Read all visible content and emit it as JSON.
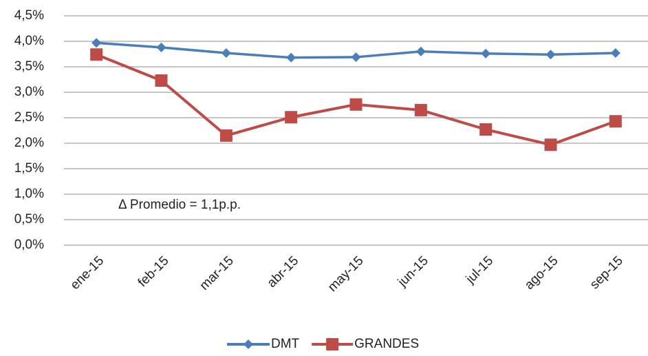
{
  "chart_data": {
    "type": "line",
    "annotation": "Δ Promedio = 1,1p.p.",
    "categories": [
      "ene-15",
      "feb-15",
      "mar-15",
      "abr-15",
      "may-15",
      "jun-15",
      "jul-15",
      "ago-15",
      "sep-15"
    ],
    "series": [
      {
        "name": "DMT",
        "color": "#4a7ebb",
        "marker": "diamond",
        "values": [
          3.97,
          3.88,
          3.77,
          3.68,
          3.69,
          3.8,
          3.76,
          3.74,
          3.77
        ]
      },
      {
        "name": "GRANDES",
        "color": "#be4b48",
        "marker": "square",
        "values": [
          3.74,
          3.23,
          2.15,
          2.51,
          2.76,
          2.65,
          2.27,
          1.97,
          2.43
        ]
      }
    ],
    "ylim": [
      0,
      4.5
    ],
    "yticks": [
      {
        "value": 0,
        "label": "0,0%"
      },
      {
        "value": 0.5,
        "label": "0,5%"
      },
      {
        "value": 1,
        "label": "1,0%"
      },
      {
        "value": 1.5,
        "label": "1,5%"
      },
      {
        "value": 2,
        "label": "2,0%"
      },
      {
        "value": 2.5,
        "label": "2,5%"
      },
      {
        "value": 3,
        "label": "3,0%"
      },
      {
        "value": 3.5,
        "label": "3,5%"
      },
      {
        "value": 4,
        "label": "4,0%"
      },
      {
        "value": 4.5,
        "label": "4,5%"
      }
    ],
    "grid": true,
    "legend": "bottom"
  }
}
